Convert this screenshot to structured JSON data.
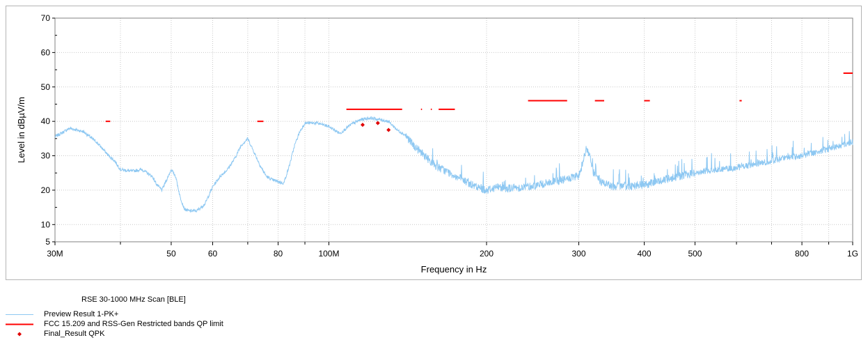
{
  "chart_data": {
    "type": "line",
    "xlabel": "Frequency in Hz",
    "ylabel": "Level in dBµV/m",
    "x_scale": "log",
    "xlim": [
      30000000,
      1000000000
    ],
    "ylim": [
      5,
      70
    ],
    "grid": true,
    "x_ticks": [
      {
        "value": 30000000,
        "label": "30M"
      },
      {
        "value": 50000000,
        "label": "50"
      },
      {
        "value": 60000000,
        "label": "60"
      },
      {
        "value": 80000000,
        "label": "80"
      },
      {
        "value": 100000000,
        "label": "100M"
      },
      {
        "value": 200000000,
        "label": "200"
      },
      {
        "value": 300000000,
        "label": "300"
      },
      {
        "value": 400000000,
        "label": "400"
      },
      {
        "value": 500000000,
        "label": "500"
      },
      {
        "value": 800000000,
        "label": "800"
      },
      {
        "value": 1000000000,
        "label": "1G"
      }
    ],
    "x_minor_ticks": [
      40000000,
      70000000,
      90000000,
      600000000,
      700000000,
      900000000
    ],
    "y_ticks": [
      5,
      10,
      20,
      30,
      40,
      50,
      60,
      70
    ],
    "series": [
      {
        "name": "Preview Result 1-PK+",
        "color": "#8ec8f2",
        "style": "noisy-line",
        "x": [
          30000000.0,
          32000000.0,
          34000000.0,
          36000000.0,
          37000000.0,
          38000000.0,
          39000000.0,
          40000000.0,
          42000000.0,
          44000000.0,
          46000000.0,
          47000000.0,
          48000000.0,
          49000000.0,
          50000000.0,
          51000000.0,
          52000000.0,
          53000000.0,
          54000000.0,
          56000000.0,
          58000000.0,
          60000000.0,
          62000000.0,
          64000000.0,
          66000000.0,
          68000000.0,
          70000000.0,
          72000000.0,
          74000000.0,
          76000000.0,
          78000000.0,
          80000000.0,
          82000000.0,
          84000000.0,
          86000000.0,
          88000000.0,
          90000000.0,
          95000000.0,
          100000000.0,
          105000000.0,
          110000000.0,
          115000000.0,
          120000000.0,
          125000000.0,
          130000000.0,
          135000000.0,
          140000000.0,
          145000000.0,
          150000000.0,
          160000000.0,
          170000000.0,
          180000000.0,
          190000000.0,
          200000000.0,
          210000000.0,
          220000000.0,
          240000000.0,
          260000000.0,
          280000000.0,
          300000000.0,
          310000000.0,
          315000000.0,
          320000000.0,
          330000000.0,
          350000000.0,
          400000000.0,
          450000000.0,
          500000000.0,
          550000000.0,
          600000000.0,
          650000000.0,
          700000000.0,
          750000000.0,
          800000000.0,
          850000000.0,
          900000000.0,
          950000000.0,
          1000000000.0
        ],
        "y": [
          35.5,
          38,
          37,
          34,
          32,
          30,
          28.5,
          26,
          25.5,
          26,
          24,
          21.5,
          20,
          23,
          26,
          24,
          18,
          14.5,
          14,
          14,
          16,
          21,
          24,
          26,
          29,
          33,
          35,
          31,
          27,
          24,
          23,
          22.5,
          22,
          27,
          33,
          37,
          39.5,
          39.5,
          38.5,
          36.5,
          39,
          40.5,
          41,
          40.5,
          40,
          37.5,
          36,
          33,
          31,
          27,
          25,
          23,
          21,
          20,
          21,
          20.5,
          21,
          22,
          23,
          24,
          32,
          30,
          25,
          22.5,
          21,
          21.5,
          23.5,
          25,
          26,
          26.5,
          27.5,
          28.5,
          29.5,
          30,
          31,
          32,
          33,
          34
        ]
      },
      {
        "name": "FCC 15.209 and RSS-Gen Restricted bands QP limit",
        "color": "#ff0000",
        "style": "segments",
        "segments": [
          {
            "x": [
              37500000.0,
              38250000.0
            ],
            "y": 40.0
          },
          {
            "x": [
              73000000.0,
              75000000.0
            ],
            "y": 40.0
          },
          {
            "x": [
              108000000.0,
              138000000.0
            ],
            "y": 43.5
          },
          {
            "x": [
              149900000.0,
              150050000.0
            ],
            "y": 43.5
          },
          {
            "x": [
              156520000.0,
              156900000.0
            ],
            "y": 43.5
          },
          {
            "x": [
              162000000.0,
              174000000.0
            ],
            "y": 43.5
          },
          {
            "x": [
              240000000.0,
              285000000.0
            ],
            "y": 46.0
          },
          {
            "x": [
              322000000.0,
              335400000.0
            ],
            "y": 46.0
          },
          {
            "x": [
              399900000.0,
              410000000.0
            ],
            "y": 46.0
          },
          {
            "x": [
              608000000.0,
              614000000.0
            ],
            "y": 46.0
          },
          {
            "x": [
              960000000.0,
              1000000000.0
            ],
            "y": 54.0
          }
        ]
      },
      {
        "name": "Final_Result QPK",
        "color": "#e00000",
        "style": "markers",
        "x": [
          116000000.0,
          124000000.0,
          130000000.0
        ],
        "y": [
          39.0,
          39.5,
          37.5
        ]
      }
    ]
  },
  "legend": {
    "title": "RSE 30-1000 MHz Scan [BLE]"
  }
}
